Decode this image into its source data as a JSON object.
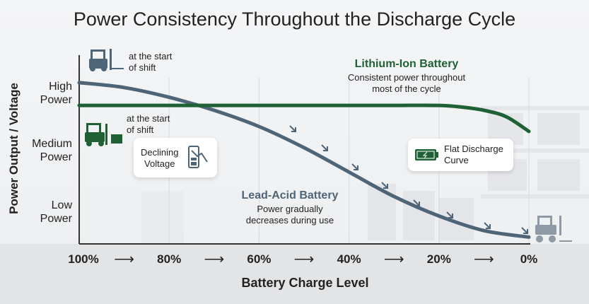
{
  "chart_data": {
    "type": "line",
    "title": "Power Consistency Throughout the Discharge Cycle",
    "xlabel": "Battery Charge Level",
    "ylabel": "Power Output / Voltage",
    "x_ticks": [
      "100%",
      "80%",
      "60%",
      "40%",
      "20%",
      "0%"
    ],
    "x_arrow": "⟶",
    "y_ticks": [
      {
        "label1": "High",
        "label2": "Power",
        "value": 0.9
      },
      {
        "label1": "Medium",
        "label2": "Power",
        "value": 0.55
      },
      {
        "label1": "Low",
        "label2": "Power",
        "value": 0.17
      }
    ],
    "xlim": [
      100,
      0
    ],
    "ylim": [
      0,
      1
    ],
    "grid": "vertical",
    "series": [
      {
        "name": "Lithium-Ion Battery",
        "color": "#1f6135",
        "x": [
          100,
          80,
          60,
          40,
          30,
          20,
          15,
          10,
          5,
          0
        ],
        "y": [
          0.83,
          0.83,
          0.83,
          0.83,
          0.83,
          0.83,
          0.82,
          0.8,
          0.76,
          0.67
        ]
      },
      {
        "name": "Lead-Acid Battery",
        "color": "#4e6577",
        "x": [
          100,
          90,
          80,
          70,
          60,
          50,
          40,
          30,
          20,
          10,
          0
        ],
        "y": [
          0.97,
          0.94,
          0.88,
          0.8,
          0.7,
          0.57,
          0.42,
          0.27,
          0.15,
          0.06,
          0.02
        ]
      }
    ],
    "annotations": {
      "li_title": "Lithium-Ion Battery",
      "li_desc1": "Consistent power throughout",
      "li_desc2": "most of the cycle",
      "la_title": "Lead-Acid Battery",
      "la_desc1": "Power gradually",
      "la_desc2": "decreases during use",
      "start1a": "at the start",
      "start1b": "of shift",
      "start2a": "at the start",
      "start2b": "of shift",
      "declining1": "Declining",
      "declining2": "Voltage",
      "flat1": "Flat Discharge",
      "flat2": "Curve"
    }
  }
}
